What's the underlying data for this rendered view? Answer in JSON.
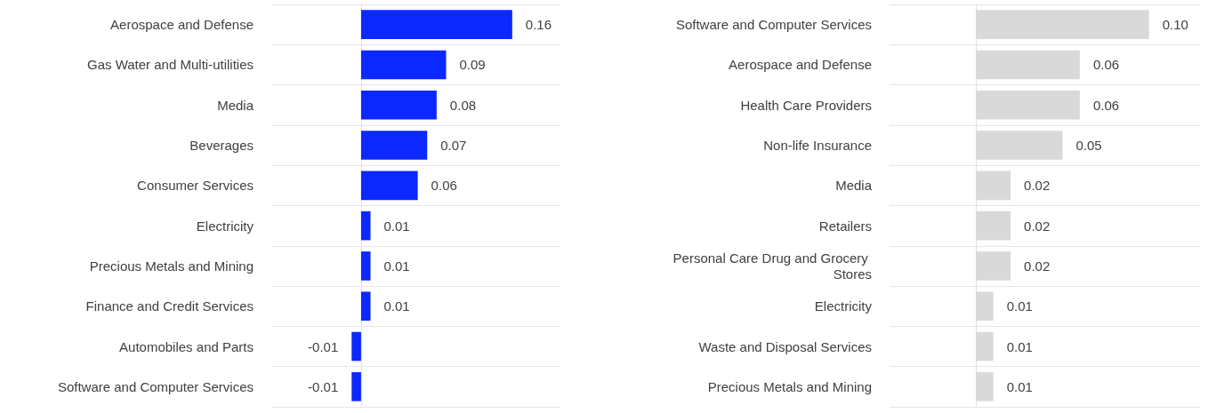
{
  "chart_data": [
    {
      "type": "bar",
      "orientation": "horizontal",
      "grid": "y",
      "categories": [
        "Aerospace and Defense",
        "Gas Water and Multi-utilities",
        "Media",
        "Beverages",
        "Consumer Services",
        "Electricity",
        "Precious Metals and Mining",
        "Finance and Credit Services",
        "Automobiles and Parts",
        "Software and Computer Services"
      ],
      "series": [
        {
          "color": "#0a28ff",
          "values": [
            0.16,
            0.09,
            0.08,
            0.07,
            0.06,
            0.01,
            0.01,
            0.01,
            -0.01,
            -0.01
          ],
          "value_labels": [
            "0.16",
            "0.09",
            "0.08",
            "0.07",
            "0.06",
            "0.01",
            "0.01",
            "0.01",
            "-0.01",
            "-0.01"
          ]
        }
      ]
    },
    {
      "type": "bar",
      "orientation": "horizontal",
      "grid": "y",
      "categories": [
        "Software and Computer Services",
        "Aerospace and Defense",
        "Health Care Providers",
        "Non-life Insurance",
        "Media",
        "Retailers",
        "Personal Care Drug and Grocery Stores",
        "Electricity",
        "Waste and Disposal Services",
        "Precious Metals and Mining"
      ],
      "series": [
        {
          "color": "#d9d9d9",
          "values": [
            0.1,
            0.06,
            0.06,
            0.05,
            0.02,
            0.02,
            0.02,
            0.01,
            0.01,
            0.01
          ],
          "value_labels": [
            "0.10",
            "0.06",
            "0.06",
            "0.05",
            "0.02",
            "0.02",
            "0.02",
            "0.01",
            "0.01",
            "0.01"
          ]
        }
      ]
    }
  ]
}
